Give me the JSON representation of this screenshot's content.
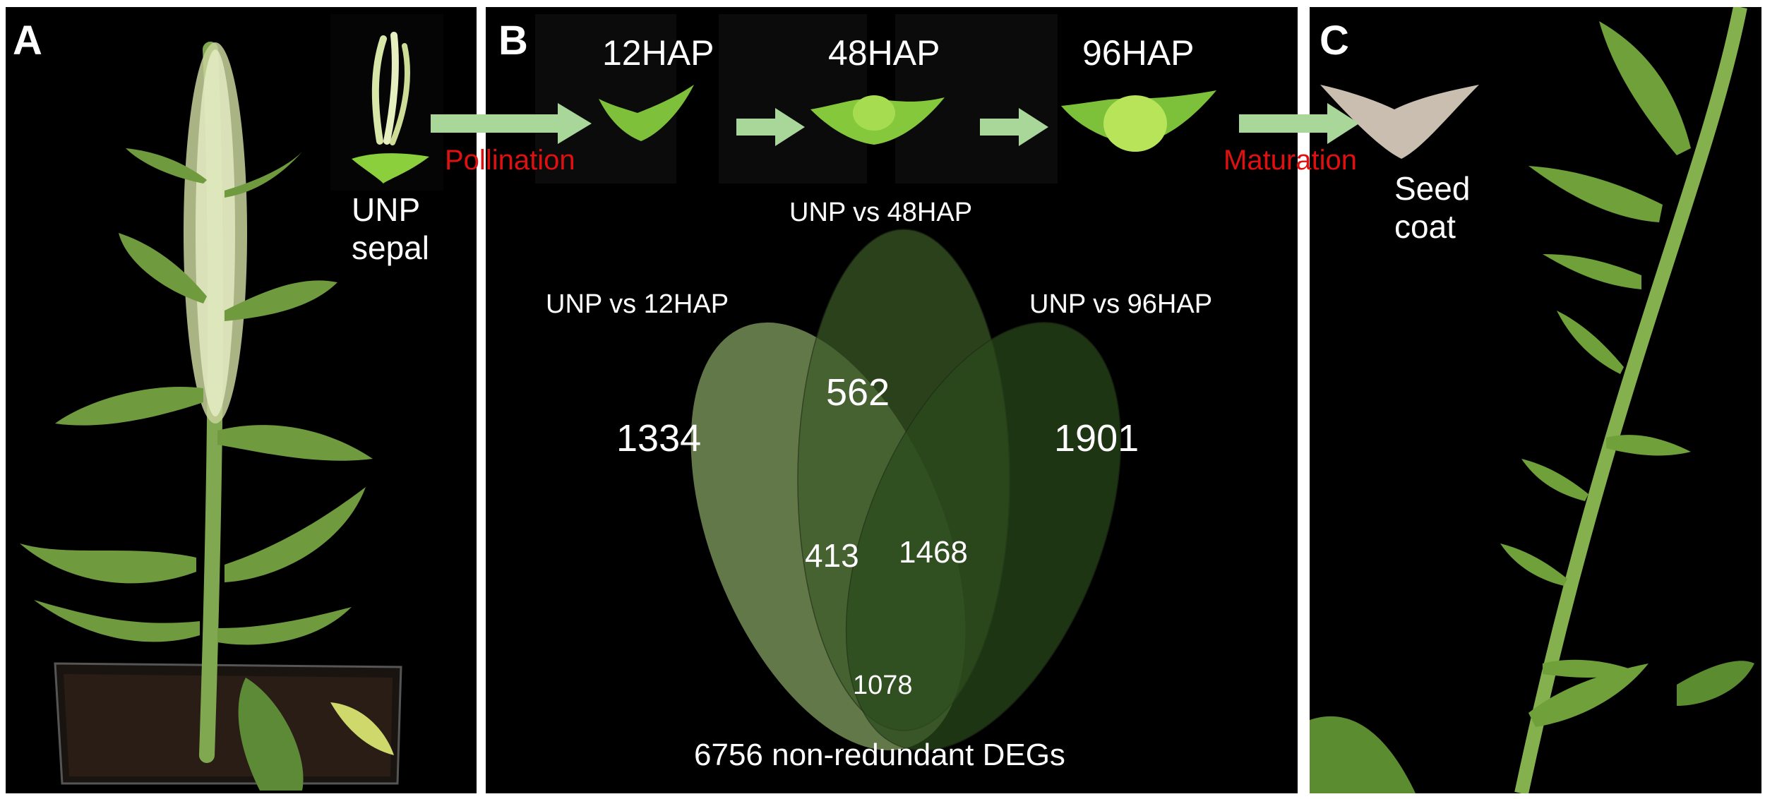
{
  "panels": {
    "a": {
      "letter": "A"
    },
    "b": {
      "letter": "B"
    },
    "c": {
      "letter": "C"
    }
  },
  "labels": {
    "unp_line1": "UNP",
    "unp_line2": "sepal",
    "pollination": "Pollination",
    "maturation": "Maturation",
    "seed_line1": "Seed",
    "seed_line2": "coat"
  },
  "stages": [
    "12HAP",
    "48HAP",
    "96HAP"
  ],
  "venn": {
    "sets": [
      "UNP vs 12HAP",
      "UNP vs 48HAP",
      "UNP vs 96HAP"
    ],
    "regions": {
      "only_12": "1334",
      "only_48": "562",
      "only_96": "1901",
      "12_48": "413",
      "48_96": "1468",
      "all_three": "1078"
    },
    "footer": "6756 non-redundant DEGs",
    "colors": {
      "set_12": "#7d9a5e",
      "set_48": "#3c5a28",
      "set_96": "#2a4a1c"
    }
  },
  "colors": {
    "arrow": "#a9d79a",
    "plant_green": "#6f9a3e",
    "flower_cream": "#e8eec8",
    "sepal_green": "#8ccf3c",
    "seed_coat": "#c9beb0",
    "soil": "#2a1d16"
  }
}
